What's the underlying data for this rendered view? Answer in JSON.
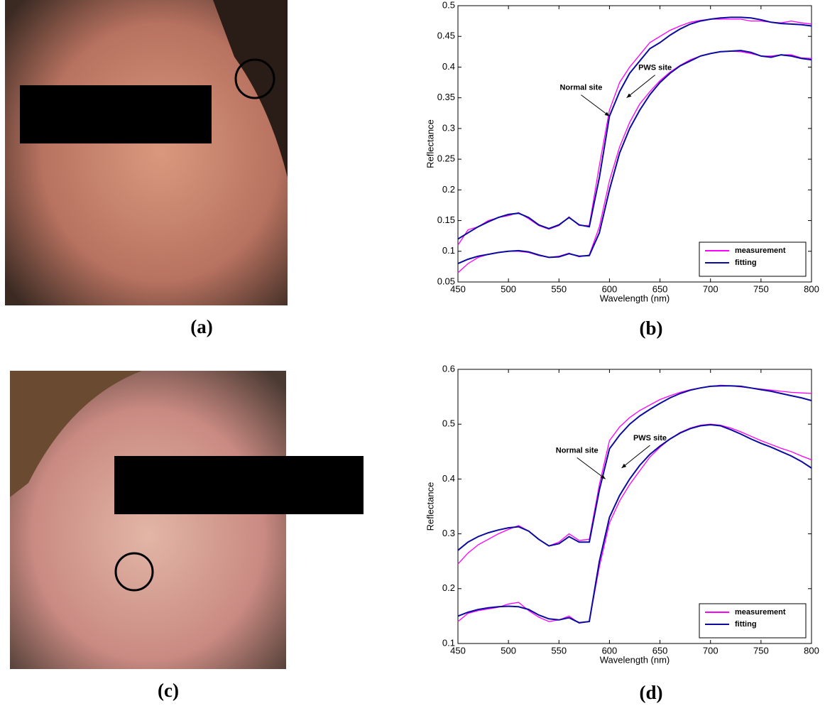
{
  "panel_labels": [
    "(a)",
    "(b)",
    "(c)",
    "(d)"
  ],
  "chart_data": [
    {
      "type": "line",
      "xlabel": "Wavelength (nm)",
      "ylabel": "Reflectance",
      "xlim": [
        450,
        800
      ],
      "xticks": [
        450,
        500,
        550,
        600,
        650,
        700,
        750,
        800
      ],
      "ylim": [
        0.05,
        0.5
      ],
      "yticks": [
        0.05,
        0.1,
        0.15,
        0.2,
        0.25,
        0.3,
        0.35,
        0.4,
        0.45,
        0.5
      ],
      "legend": "lower right",
      "x": [
        450,
        460,
        470,
        480,
        490,
        500,
        510,
        520,
        530,
        540,
        550,
        560,
        570,
        580,
        590,
        600,
        610,
        620,
        630,
        640,
        650,
        660,
        670,
        680,
        690,
        700,
        710,
        720,
        730,
        740,
        750,
        760,
        770,
        780,
        790,
        800
      ],
      "series": [
        {
          "name": "measurement",
          "color": "#ff00ff",
          "values": [
            0.11,
            0.135,
            0.14,
            0.15,
            0.155,
            0.158,
            0.163,
            0.153,
            0.142,
            0.136,
            0.142,
            0.156,
            0.142,
            0.142,
            0.24,
            0.33,
            0.375,
            0.4,
            0.42,
            0.44,
            0.45,
            0.46,
            0.467,
            0.473,
            0.476,
            0.478,
            0.478,
            0.478,
            0.478,
            0.475,
            0.475,
            0.473,
            0.472,
            0.475,
            0.472,
            0.47
          ]
        },
        {
          "name": "fitting",
          "color": "#0a0aa0",
          "values": [
            0.12,
            0.13,
            0.14,
            0.148,
            0.155,
            0.16,
            0.162,
            0.155,
            0.143,
            0.137,
            0.143,
            0.155,
            0.143,
            0.14,
            0.22,
            0.32,
            0.36,
            0.39,
            0.41,
            0.43,
            0.44,
            0.452,
            0.462,
            0.47,
            0.475,
            0.478,
            0.48,
            0.481,
            0.481,
            0.48,
            0.477,
            0.473,
            0.471,
            0.47,
            0.469,
            0.467
          ]
        },
        {
          "name": "measurement",
          "color": "#ff00ff",
          "values": [
            0.065,
            0.08,
            0.09,
            0.095,
            0.098,
            0.1,
            0.1,
            0.098,
            0.093,
            0.09,
            0.092,
            0.097,
            0.091,
            0.094,
            0.14,
            0.215,
            0.27,
            0.31,
            0.34,
            0.36,
            0.378,
            0.392,
            0.403,
            0.412,
            0.418,
            0.422,
            0.425,
            0.426,
            0.425,
            0.422,
            0.418,
            0.418,
            0.42,
            0.42,
            0.415,
            0.414
          ]
        },
        {
          "name": "fitting",
          "color": "#0a0aa0",
          "values": [
            0.08,
            0.087,
            0.092,
            0.095,
            0.098,
            0.1,
            0.101,
            0.099,
            0.094,
            0.09,
            0.091,
            0.096,
            0.092,
            0.093,
            0.13,
            0.2,
            0.26,
            0.3,
            0.33,
            0.355,
            0.375,
            0.39,
            0.402,
            0.41,
            0.418,
            0.422,
            0.425,
            0.426,
            0.427,
            0.424,
            0.418,
            0.416,
            0.42,
            0.418,
            0.414,
            0.412
          ]
        }
      ],
      "annotations": [
        {
          "text": "Normal site",
          "x": 600,
          "y": 0.32
        },
        {
          "text": "PWS site",
          "x": 617,
          "y": 0.35
        }
      ]
    },
    {
      "type": "line",
      "xlabel": "Wavelength (nm)",
      "ylabel": "Reflectance",
      "xlim": [
        450,
        800
      ],
      "xticks": [
        450,
        500,
        550,
        600,
        650,
        700,
        750,
        800
      ],
      "ylim": [
        0.1,
        0.6
      ],
      "yticks": [
        0.1,
        0.2,
        0.3,
        0.4,
        0.5,
        0.6
      ],
      "legend": "lower right",
      "x": [
        450,
        460,
        470,
        480,
        490,
        500,
        510,
        520,
        530,
        540,
        550,
        560,
        570,
        580,
        590,
        600,
        610,
        620,
        630,
        640,
        650,
        660,
        670,
        680,
        690,
        700,
        710,
        720,
        730,
        740,
        750,
        760,
        770,
        780,
        790,
        800
      ],
      "series": [
        {
          "name": "measurement",
          "color": "#ff00ff",
          "values": [
            0.245,
            0.265,
            0.28,
            0.29,
            0.3,
            0.308,
            0.315,
            0.305,
            0.29,
            0.278,
            0.285,
            0.3,
            0.288,
            0.29,
            0.39,
            0.47,
            0.495,
            0.512,
            0.525,
            0.535,
            0.545,
            0.552,
            0.558,
            0.563,
            0.566,
            0.569,
            0.571,
            0.57,
            0.568,
            0.566,
            0.564,
            0.562,
            0.56,
            0.558,
            0.557,
            0.556
          ]
        },
        {
          "name": "fitting",
          "color": "#0a0aa0",
          "values": [
            0.27,
            0.285,
            0.295,
            0.302,
            0.307,
            0.311,
            0.313,
            0.305,
            0.29,
            0.278,
            0.282,
            0.295,
            0.285,
            0.285,
            0.38,
            0.455,
            0.48,
            0.5,
            0.515,
            0.527,
            0.538,
            0.548,
            0.556,
            0.562,
            0.566,
            0.569,
            0.57,
            0.57,
            0.569,
            0.566,
            0.563,
            0.56,
            0.556,
            0.552,
            0.548,
            0.543
          ]
        },
        {
          "name": "measurement",
          "color": "#ff00ff",
          "values": [
            0.14,
            0.155,
            0.16,
            0.163,
            0.166,
            0.172,
            0.175,
            0.16,
            0.148,
            0.14,
            0.143,
            0.15,
            0.137,
            0.14,
            0.24,
            0.32,
            0.36,
            0.39,
            0.415,
            0.44,
            0.458,
            0.473,
            0.485,
            0.493,
            0.498,
            0.5,
            0.498,
            0.493,
            0.486,
            0.478,
            0.47,
            0.463,
            0.456,
            0.45,
            0.442,
            0.435
          ]
        },
        {
          "name": "fitting",
          "color": "#0a0aa0",
          "values": [
            0.15,
            0.157,
            0.162,
            0.165,
            0.167,
            0.168,
            0.167,
            0.162,
            0.152,
            0.145,
            0.143,
            0.147,
            0.138,
            0.14,
            0.25,
            0.33,
            0.37,
            0.4,
            0.425,
            0.445,
            0.46,
            0.473,
            0.484,
            0.492,
            0.497,
            0.499,
            0.497,
            0.49,
            0.482,
            0.473,
            0.465,
            0.458,
            0.45,
            0.442,
            0.432,
            0.42
          ]
        }
      ],
      "annotations": [
        {
          "text": "Normal site",
          "x": 596,
          "y": 0.4
        },
        {
          "text": "PWS site",
          "x": 612,
          "y": 0.42
        }
      ]
    }
  ]
}
